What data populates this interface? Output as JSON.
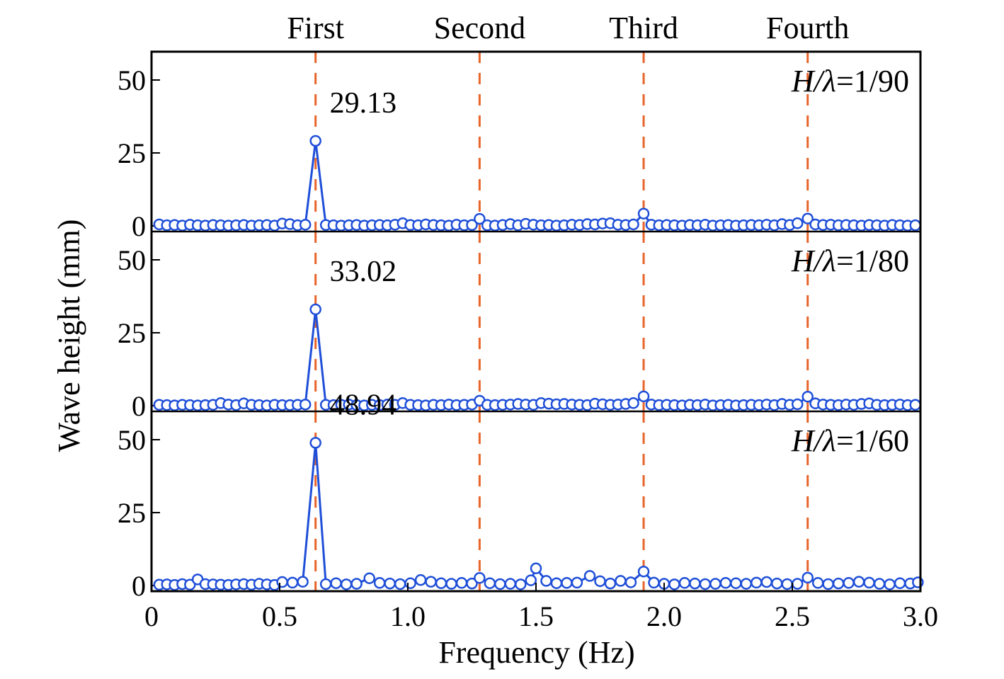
{
  "chart_data": {
    "type": "line",
    "xlabel": "Frequency (Hz)",
    "ylabel": "Wave height (mm)",
    "xlim": [
      0,
      3.0
    ],
    "ylim": [
      0,
      60
    ],
    "x_ticks": [
      "0",
      "0.5",
      "1.0",
      "1.5",
      "2.0",
      "2.5",
      "3.0"
    ],
    "x_tick_values": [
      0,
      0.5,
      1.0,
      1.5,
      2.0,
      2.5,
      3.0
    ],
    "y_ticks": [
      "0",
      "25",
      "50"
    ],
    "y_tick_values": [
      0,
      25,
      50
    ],
    "colors": {
      "series": "#1f4fd8",
      "harmonic_line": "#e8642a"
    },
    "harmonics": [
      {
        "label": "First",
        "x": 0.64
      },
      {
        "label": "Second",
        "x": 1.28
      },
      {
        "label": "Third",
        "x": 1.92
      },
      {
        "label": "Fourth",
        "x": 2.56
      }
    ],
    "panels": [
      {
        "steepness_var": "H/λ",
        "steepness_value": "=1/90",
        "peak_label": "29.13",
        "peak": {
          "x": 0.64,
          "y": 29.13
        },
        "x": [
          0.03,
          0.06,
          0.09,
          0.12,
          0.15,
          0.18,
          0.21,
          0.24,
          0.27,
          0.3,
          0.33,
          0.36,
          0.39,
          0.42,
          0.45,
          0.48,
          0.51,
          0.54,
          0.57,
          0.6,
          0.64,
          0.68,
          0.71,
          0.74,
          0.77,
          0.8,
          0.83,
          0.86,
          0.89,
          0.92,
          0.95,
          0.98,
          1.01,
          1.04,
          1.07,
          1.1,
          1.13,
          1.16,
          1.19,
          1.22,
          1.25,
          1.28,
          1.31,
          1.34,
          1.37,
          1.4,
          1.43,
          1.46,
          1.49,
          1.52,
          1.55,
          1.58,
          1.61,
          1.64,
          1.67,
          1.7,
          1.73,
          1.76,
          1.79,
          1.82,
          1.85,
          1.88,
          1.92,
          1.95,
          1.98,
          2.01,
          2.04,
          2.07,
          2.1,
          2.13,
          2.16,
          2.19,
          2.22,
          2.25,
          2.28,
          2.31,
          2.34,
          2.37,
          2.4,
          2.43,
          2.46,
          2.49,
          2.52,
          2.56,
          2.59,
          2.62,
          2.65,
          2.68,
          2.71,
          2.74,
          2.77,
          2.8,
          2.83,
          2.86,
          2.89,
          2.92,
          2.95,
          2.98
        ],
        "y": [
          0.5,
          0.2,
          0.3,
          0.1,
          0.4,
          0.2,
          0.1,
          0.3,
          0.2,
          0.1,
          0.2,
          0.3,
          0.1,
          0.2,
          0.3,
          0.1,
          0.8,
          0.6,
          0.2,
          0.4,
          29.13,
          0.3,
          0.2,
          0.1,
          0.2,
          0.3,
          0.1,
          0.2,
          0.3,
          0.2,
          0.4,
          0.9,
          0.3,
          0.2,
          0.5,
          0.3,
          0.2,
          0.1,
          0.4,
          0.2,
          0.3,
          2.4,
          0.2,
          0.1,
          0.3,
          0.6,
          0.2,
          0.7,
          0.4,
          0.2,
          0.3,
          0.1,
          0.2,
          0.4,
          0.3,
          0.6,
          0.5,
          0.8,
          0.9,
          0.4,
          0.3,
          0.5,
          4.2,
          0.4,
          0.2,
          0.3,
          0.2,
          0.1,
          0.3,
          0.2,
          0.4,
          0.1,
          0.2,
          0.3,
          0.1,
          0.2,
          0.3,
          0.2,
          0.4,
          0.2,
          0.6,
          0.3,
          0.9,
          2.5,
          0.5,
          0.3,
          0.4,
          0.2,
          0.3,
          0.2,
          0.1,
          0.3,
          0.2,
          0.1,
          0.3,
          0.2,
          0.1,
          0.2
        ]
      },
      {
        "steepness_var": "H/λ",
        "steepness_value": "=1/80",
        "peak_label": "33.02",
        "peak": {
          "x": 0.64,
          "y": 33.02
        },
        "x": [
          0.03,
          0.06,
          0.09,
          0.12,
          0.15,
          0.18,
          0.21,
          0.24,
          0.27,
          0.3,
          0.33,
          0.36,
          0.39,
          0.42,
          0.45,
          0.48,
          0.51,
          0.54,
          0.57,
          0.6,
          0.64,
          0.68,
          0.71,
          0.74,
          0.77,
          0.8,
          0.83,
          0.86,
          0.89,
          0.92,
          0.95,
          0.98,
          1.01,
          1.04,
          1.07,
          1.1,
          1.13,
          1.16,
          1.19,
          1.22,
          1.25,
          1.28,
          1.31,
          1.34,
          1.37,
          1.4,
          1.43,
          1.46,
          1.49,
          1.52,
          1.55,
          1.58,
          1.61,
          1.64,
          1.67,
          1.7,
          1.73,
          1.76,
          1.79,
          1.82,
          1.85,
          1.88,
          1.92,
          1.95,
          1.98,
          2.01,
          2.04,
          2.07,
          2.1,
          2.13,
          2.16,
          2.19,
          2.22,
          2.25,
          2.28,
          2.31,
          2.34,
          2.37,
          2.4,
          2.43,
          2.46,
          2.49,
          2.52,
          2.56,
          2.59,
          2.62,
          2.65,
          2.68,
          2.71,
          2.74,
          2.77,
          2.8,
          2.83,
          2.86,
          2.89,
          2.92,
          2.95,
          2.98
        ],
        "y": [
          0.3,
          0.2,
          0.1,
          0.3,
          0.2,
          0.1,
          0.2,
          0.3,
          0.9,
          0.4,
          0.2,
          0.8,
          0.3,
          0.2,
          0.1,
          0.3,
          0.2,
          0.2,
          0.3,
          0.4,
          33.02,
          0.3,
          0.2,
          0.3,
          0.4,
          0.2,
          0.1,
          0.3,
          0.2,
          0.4,
          0.3,
          0.9,
          0.3,
          0.2,
          0.1,
          0.3,
          0.2,
          0.4,
          0.2,
          0.3,
          0.4,
          1.7,
          0.3,
          0.2,
          0.3,
          0.4,
          0.6,
          0.4,
          0.3,
          0.9,
          0.7,
          0.5,
          0.6,
          0.4,
          0.3,
          0.2,
          0.7,
          0.5,
          0.3,
          0.4,
          0.6,
          0.9,
          3.2,
          0.4,
          0.2,
          0.3,
          0.2,
          0.1,
          0.3,
          0.2,
          0.4,
          0.1,
          0.2,
          0.3,
          0.1,
          0.2,
          0.3,
          0.2,
          0.4,
          0.2,
          0.6,
          0.3,
          0.5,
          3.1,
          0.8,
          0.4,
          0.3,
          0.2,
          0.4,
          0.3,
          0.6,
          0.8,
          0.3,
          0.2,
          0.3,
          0.4,
          0.2,
          0.3
        ]
      },
      {
        "steepness_var": "H/λ",
        "steepness_value": "=1/60",
        "peak_label": "48.94",
        "peak": {
          "x": 0.64,
          "y": 48.94
        },
        "x": [
          0.03,
          0.06,
          0.09,
          0.12,
          0.15,
          0.18,
          0.21,
          0.24,
          0.27,
          0.3,
          0.33,
          0.36,
          0.39,
          0.42,
          0.45,
          0.48,
          0.51,
          0.55,
          0.59,
          0.64,
          0.68,
          0.72,
          0.76,
          0.8,
          0.85,
          0.89,
          0.93,
          0.97,
          1.01,
          1.05,
          1.09,
          1.13,
          1.17,
          1.21,
          1.25,
          1.28,
          1.32,
          1.36,
          1.4,
          1.44,
          1.48,
          1.5,
          1.54,
          1.58,
          1.62,
          1.66,
          1.71,
          1.75,
          1.79,
          1.83,
          1.87,
          1.92,
          1.96,
          2.0,
          2.04,
          2.08,
          2.12,
          2.16,
          2.2,
          2.24,
          2.28,
          2.32,
          2.36,
          2.4,
          2.44,
          2.48,
          2.52,
          2.56,
          2.6,
          2.64,
          2.68,
          2.72,
          2.76,
          2.8,
          2.84,
          2.88,
          2.92,
          2.96,
          2.99
        ],
        "y": [
          0.3,
          0.4,
          0.2,
          0.5,
          0.3,
          2.1,
          0.5,
          0.4,
          0.3,
          0.2,
          0.4,
          0.5,
          0.3,
          0.6,
          0.4,
          0.2,
          1.2,
          1.0,
          1.3,
          48.94,
          0.5,
          0.8,
          0.4,
          0.6,
          2.5,
          0.9,
          0.7,
          0.5,
          0.8,
          1.9,
          1.3,
          0.8,
          0.6,
          0.9,
          0.7,
          2.6,
          0.8,
          0.5,
          0.6,
          0.4,
          1.8,
          5.9,
          1.6,
          0.8,
          0.9,
          1.0,
          3.3,
          1.5,
          0.7,
          1.6,
          1.1,
          4.8,
          1.0,
          0.6,
          0.4,
          0.9,
          0.7,
          0.5,
          0.6,
          0.9,
          0.8,
          0.6,
          1.0,
          1.2,
          0.7,
          0.5,
          0.6,
          2.7,
          0.9,
          0.5,
          0.7,
          0.9,
          1.3,
          1.0,
          0.6,
          0.4,
          0.8,
          0.7,
          1.1
        ]
      }
    ]
  }
}
